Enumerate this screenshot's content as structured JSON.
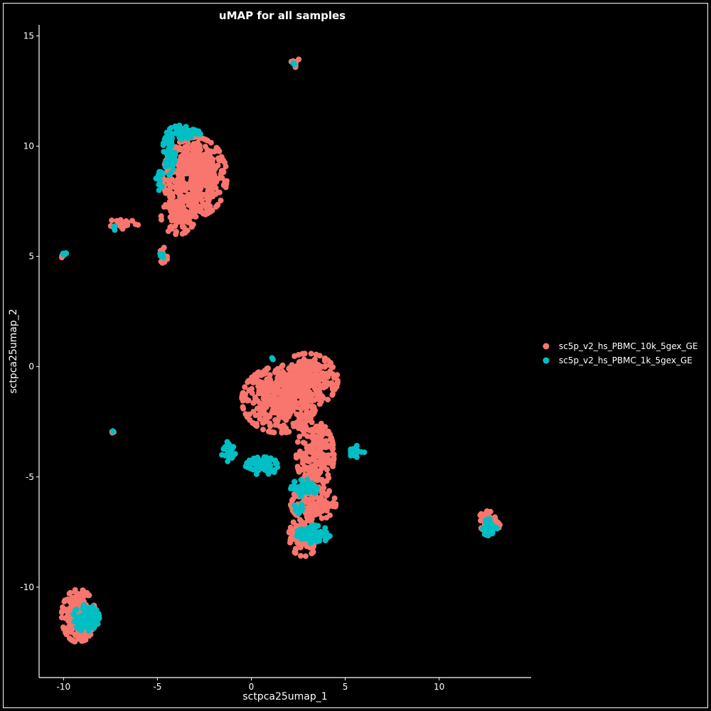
{
  "chart_data": {
    "type": "scatter",
    "title": "uMAP for all samples",
    "xlabel": "sctpca25umap_1",
    "ylabel": "sctpca25umap_2",
    "xlim": [
      -11.3,
      14.9
    ],
    "ylim": [
      -14.1,
      15.5
    ],
    "x_ticks": [
      -10,
      -5,
      0,
      5,
      10
    ],
    "y_ticks": [
      -10,
      -5,
      0,
      5,
      10,
      15
    ],
    "x_tick_labels": [
      "-10",
      "-5",
      "0",
      "5",
      "10"
    ],
    "y_tick_labels": [
      "-10",
      "-5",
      "0",
      "5",
      "10",
      "15"
    ],
    "grid": false,
    "legend_placement": "right",
    "background": "#000000",
    "series": [
      {
        "name": "sc5p_v2_hs_PBMC_10k_5gex_GE",
        "color": "#f8766d",
        "clusters": [
          {
            "cx": -3.0,
            "cy": 8.6,
            "rx": 1.7,
            "ry": 1.8,
            "n": 520
          },
          {
            "cx": -3.9,
            "cy": 6.8,
            "rx": 0.9,
            "ry": 0.8,
            "n": 90
          },
          {
            "cx": -4.7,
            "cy": 5.0,
            "rx": 0.25,
            "ry": 0.6,
            "n": 25
          },
          {
            "cx": -6.8,
            "cy": 6.5,
            "rx": 0.8,
            "ry": 0.25,
            "n": 25
          },
          {
            "cx": 2.3,
            "cy": 13.8,
            "rx": 0.3,
            "ry": 0.35,
            "n": 8
          },
          {
            "cx": -10.0,
            "cy": 5.05,
            "rx": 0.15,
            "ry": 0.12,
            "n": 4
          },
          {
            "cx": 1.5,
            "cy": -1.5,
            "rx": 2.0,
            "ry": 1.5,
            "n": 420
          },
          {
            "cx": 3.0,
            "cy": -0.6,
            "rx": 1.6,
            "ry": 1.2,
            "n": 260
          },
          {
            "cx": 3.4,
            "cy": -4.0,
            "rx": 1.0,
            "ry": 1.5,
            "n": 200
          },
          {
            "cx": 3.3,
            "cy": -6.2,
            "rx": 1.2,
            "ry": 0.8,
            "n": 120
          },
          {
            "cx": 2.8,
            "cy": -7.7,
            "rx": 0.8,
            "ry": 0.9,
            "n": 110
          },
          {
            "cx": 12.7,
            "cy": -7.0,
            "rx": 0.6,
            "ry": 0.5,
            "n": 50
          },
          {
            "cx": -9.2,
            "cy": -11.3,
            "rx": 0.9,
            "ry": 1.2,
            "n": 230
          },
          {
            "cx": -7.4,
            "cy": -2.95,
            "rx": 0.08,
            "ry": 0.08,
            "n": 4
          }
        ]
      },
      {
        "name": "sc5p_v2_hs_PBMC_1k_5gex_GE",
        "color": "#00bfc4",
        "clusters": [
          {
            "cx": -4.4,
            "cy": 9.6,
            "rx": 0.35,
            "ry": 0.9,
            "n": 60
          },
          {
            "cx": -3.6,
            "cy": 10.6,
            "rx": 0.9,
            "ry": 0.35,
            "n": 50
          },
          {
            "cx": -4.9,
            "cy": 8.6,
            "rx": 0.2,
            "ry": 0.6,
            "n": 20
          },
          {
            "cx": -4.8,
            "cy": 5.0,
            "rx": 0.12,
            "ry": 0.2,
            "n": 4
          },
          {
            "cx": -10.0,
            "cy": 5.15,
            "rx": 0.15,
            "ry": 0.08,
            "n": 4
          },
          {
            "cx": -7.3,
            "cy": 6.3,
            "rx": 0.15,
            "ry": 0.15,
            "n": 3
          },
          {
            "cx": -1.2,
            "cy": -3.8,
            "rx": 0.4,
            "ry": 0.5,
            "n": 35
          },
          {
            "cx": 0.6,
            "cy": -4.5,
            "rx": 0.9,
            "ry": 0.4,
            "n": 70
          },
          {
            "cx": 2.8,
            "cy": -5.5,
            "rx": 0.7,
            "ry": 0.4,
            "n": 45
          },
          {
            "cx": 3.3,
            "cy": -7.6,
            "rx": 0.9,
            "ry": 0.4,
            "n": 70
          },
          {
            "cx": 2.5,
            "cy": -6.5,
            "rx": 0.3,
            "ry": 0.3,
            "n": 15
          },
          {
            "cx": 5.6,
            "cy": -3.8,
            "rx": 0.5,
            "ry": 0.3,
            "n": 15
          },
          {
            "cx": 2.3,
            "cy": 13.75,
            "rx": 0.15,
            "ry": 0.15,
            "n": 3
          },
          {
            "cx": 12.7,
            "cy": -7.3,
            "rx": 0.4,
            "ry": 0.4,
            "n": 40
          },
          {
            "cx": -8.8,
            "cy": -11.4,
            "rx": 0.7,
            "ry": 0.6,
            "n": 80
          },
          {
            "cx": -7.4,
            "cy": -2.9,
            "rx": 0.06,
            "ry": 0.06,
            "n": 2
          },
          {
            "cx": 1.1,
            "cy": 0.35,
            "rx": 0.1,
            "ry": 0.1,
            "n": 2
          }
        ]
      }
    ]
  }
}
